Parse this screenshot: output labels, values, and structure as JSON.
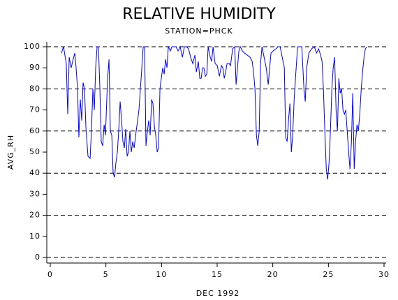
{
  "chart_data": {
    "type": "line",
    "title": "RELATIVE HUMIDITY",
    "subtitle": "STATION=PHCK",
    "x_label": "DEC 1992",
    "y_label": "AVG_RH",
    "xlim": [
      0,
      30
    ],
    "xticks": [
      0,
      5,
      10,
      15,
      20,
      25,
      30
    ],
    "ylim": [
      0,
      100
    ],
    "yticks": [
      0,
      10,
      20,
      30,
      40,
      50,
      60,
      70,
      80,
      90,
      100
    ],
    "reference_lines": [
      0,
      20,
      40,
      60,
      80,
      100
    ],
    "x": [
      1.0,
      1.19,
      1.44,
      1.57,
      1.7,
      1.88,
      2.01,
      2.2,
      2.32,
      2.45,
      2.57,
      2.7,
      2.83,
      2.95,
      3.08,
      3.2,
      3.39,
      3.58,
      3.7,
      3.83,
      3.96,
      4.08,
      4.21,
      4.33,
      4.46,
      4.58,
      4.71,
      4.84,
      4.96,
      5.15,
      5.28,
      5.4,
      5.53,
      5.65,
      5.78,
      5.9,
      6.03,
      6.15,
      6.28,
      6.41,
      6.53,
      6.66,
      6.78,
      6.91,
      7.03,
      7.16,
      7.28,
      7.41,
      7.54,
      7.72,
      7.85,
      7.97,
      8.1,
      8.23,
      8.35,
      8.48,
      8.6,
      8.73,
      8.85,
      8.98,
      9.11,
      9.23,
      9.36,
      9.48,
      9.61,
      9.73,
      9.86,
      9.98,
      10.11,
      10.24,
      10.36,
      10.49,
      10.61,
      10.8,
      10.93,
      11.11,
      11.3,
      11.49,
      11.68,
      11.87,
      12.06,
      12.25,
      12.43,
      12.62,
      12.81,
      13.0,
      13.13,
      13.31,
      13.44,
      13.56,
      13.69,
      13.81,
      13.94,
      14.07,
      14.19,
      14.38,
      14.51,
      14.63,
      14.82,
      15.01,
      15.2,
      15.39,
      15.51,
      15.64,
      15.76,
      15.89,
      16.08,
      16.2,
      16.39,
      16.58,
      16.7,
      16.83,
      16.95,
      17.08,
      17.27,
      17.46,
      17.71,
      17.96,
      18.15,
      18.27,
      18.4,
      18.53,
      18.65,
      18.78,
      18.9,
      19.03,
      19.22,
      19.41,
      19.59,
      19.72,
      19.84,
      20.03,
      20.28,
      20.47,
      20.66,
      20.85,
      21.04,
      21.16,
      21.29,
      21.41,
      21.54,
      21.67,
      21.79,
      21.92,
      22.04,
      22.23,
      22.42,
      22.61,
      22.8,
      22.92,
      23.05,
      23.24,
      23.49,
      23.74,
      23.93,
      24.12,
      24.3,
      24.43,
      24.55,
      24.68,
      24.81,
      24.93,
      25.06,
      25.18,
      25.31,
      25.43,
      25.56,
      25.69,
      25.81,
      25.94,
      26.06,
      26.19,
      26.31,
      26.44,
      26.56,
      26.69,
      26.82,
      26.94,
      27.07,
      27.19,
      27.32,
      27.44,
      27.57,
      27.69,
      27.82,
      27.95,
      28.07,
      28.2,
      28.32,
      28.45
    ],
    "series": [
      {
        "name": "AVG_RH",
        "color": "#0000ff",
        "values": [
          97,
          100,
          92,
          68,
          95,
          90,
          93,
          97,
          90,
          80,
          57,
          75,
          65,
          83,
          80,
          62,
          48,
          47,
          60,
          80,
          70,
          90,
          100,
          100,
          80,
          55,
          53,
          63,
          58,
          85,
          94,
          60,
          58,
          40,
          38,
          45,
          50,
          60,
          74,
          65,
          55,
          52,
          61,
          48,
          50,
          60,
          50,
          55,
          52,
          60,
          65,
          70,
          80,
          90,
          100,
          100,
          53,
          60,
          65,
          58,
          75,
          73,
          62,
          58,
          50,
          52,
          80,
          85,
          90,
          87,
          94,
          90,
          100,
          98,
          100,
          100,
          100,
          98,
          100,
          95,
          100,
          100,
          99,
          95,
          92,
          96,
          88,
          93,
          85,
          85,
          90,
          90,
          86,
          87,
          100,
          95,
          93,
          100,
          92,
          91,
          86,
          91,
          90,
          85,
          88,
          92,
          92,
          91,
          99,
          100,
          82,
          90,
          98,
          100,
          98,
          97,
          96,
          95,
          93,
          88,
          80,
          58,
          53,
          60,
          92,
          100,
          95,
          90,
          82,
          90,
          97,
          98,
          99,
          100,
          100,
          95,
          90,
          57,
          55,
          65,
          73,
          50,
          58,
          75,
          85,
          100,
          100,
          100,
          80,
          74,
          90,
          97,
          99,
          100,
          97,
          99,
          96,
          93,
          80,
          60,
          42,
          37,
          45,
          60,
          80,
          90,
          95,
          70,
          60,
          85,
          78,
          80,
          70,
          68,
          70,
          60,
          50,
          42,
          55,
          78,
          42,
          55,
          63,
          60,
          68,
          80,
          88,
          95,
          99,
          100
        ]
      }
    ]
  }
}
